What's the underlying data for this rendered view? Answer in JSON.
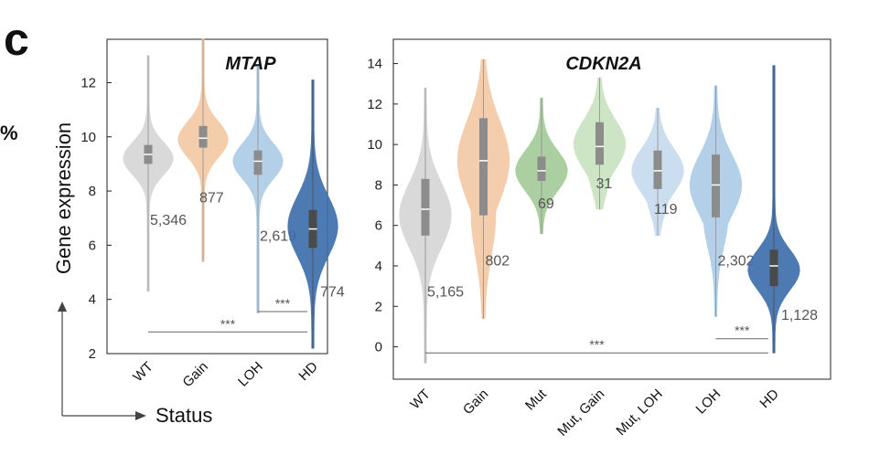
{
  "panel_label": "c",
  "margin_fragment": "%",
  "shared_axis": {
    "ylabel": "Gene expression",
    "xlabel": "Status"
  },
  "chart_data": [
    {
      "type": "violin",
      "title": "MTAP",
      "ylim": [
        2,
        13.6
      ],
      "yticks": [
        2,
        4,
        6,
        8,
        10,
        12
      ],
      "categories": [
        "WT",
        "Gain",
        "LOH",
        "HD"
      ],
      "colors": [
        "#d6d6d6",
        "#f2c9a6",
        "#aecde8",
        "#3f6fad"
      ],
      "series": [
        {
          "category": "WT",
          "n_label": "5,346",
          "min": 4.3,
          "q1": 9.0,
          "median": 9.35,
          "q3": 9.7,
          "max": 13.0,
          "peak": 9.2,
          "spread": 0.6
        },
        {
          "category": "Gain",
          "n_label": "877",
          "min": 5.4,
          "q1": 9.6,
          "median": 9.95,
          "q3": 10.4,
          "max": 13.6,
          "peak": 9.9,
          "spread": 0.65
        },
        {
          "category": "LOH",
          "n_label": "2,619",
          "min": 3.5,
          "q1": 8.6,
          "median": 9.1,
          "q3": 9.5,
          "max": 12.6,
          "peak": 9.1,
          "spread": 0.65
        },
        {
          "category": "HD",
          "n_label": "774",
          "min": 2.2,
          "q1": 5.9,
          "median": 6.6,
          "q3": 7.3,
          "max": 12.1,
          "peak": 6.7,
          "spread": 1.1
        }
      ],
      "significance": [
        {
          "label": "***",
          "from": "LOH",
          "to": "HD",
          "y": 3.55
        },
        {
          "label": "***",
          "from": "WT",
          "to": "HD",
          "y": 2.8
        }
      ]
    },
    {
      "type": "violin",
      "title": "CDKN2A",
      "ylim": [
        -1.6,
        15.2
      ],
      "yticks": [
        0,
        2,
        4,
        6,
        8,
        10,
        12,
        14
      ],
      "categories": [
        "WT",
        "Gain",
        "Mut",
        "Mut, Gain",
        "Mut, LOH",
        "LOH",
        "HD"
      ],
      "colors": [
        "#d6d6d6",
        "#f2c9a6",
        "#a5cc9a",
        "#c9e2c1",
        "#c7dcef",
        "#aecde8",
        "#3f6fad"
      ],
      "series": [
        {
          "category": "WT",
          "n_label": "5,165",
          "min": -0.8,
          "q1": 5.5,
          "median": 6.8,
          "q3": 8.3,
          "max": 12.8,
          "peak": 6.5,
          "spread": 1.6
        },
        {
          "category": "Gain",
          "n_label": "802",
          "min": 1.4,
          "q1": 6.5,
          "median": 9.2,
          "q3": 11.3,
          "max": 14.2,
          "peak": 9.2,
          "spread": 2.0
        },
        {
          "category": "Mut",
          "n_label": "69",
          "min": 5.6,
          "q1": 8.2,
          "median": 8.7,
          "q3": 9.4,
          "max": 12.3,
          "peak": 8.7,
          "spread": 1.0
        },
        {
          "category": "Mut, Gain",
          "n_label": "31",
          "min": 6.8,
          "q1": 9.0,
          "median": 9.9,
          "q3": 11.1,
          "max": 13.3,
          "peak": 10.0,
          "spread": 1.2
        },
        {
          "category": "Mut, LOH",
          "n_label": "119",
          "min": 5.5,
          "q1": 7.8,
          "median": 8.7,
          "q3": 9.7,
          "max": 11.8,
          "peak": 8.7,
          "spread": 1.1
        },
        {
          "category": "LOH",
          "n_label": "2,302",
          "min": 1.5,
          "q1": 6.4,
          "median": 8.0,
          "q3": 9.5,
          "max": 12.9,
          "peak": 8.0,
          "spread": 1.5
        },
        {
          "category": "HD",
          "n_label": "1,128",
          "min": -0.3,
          "q1": 3.0,
          "median": 4.0,
          "q3": 4.8,
          "max": 13.9,
          "peak": 3.8,
          "spread": 1.0
        }
      ],
      "significance": [
        {
          "label": "***",
          "from": "LOH",
          "to": "HD",
          "y": 0.4
        },
        {
          "label": "***",
          "from": "WT",
          "to": "HD",
          "y": -0.3
        }
      ]
    }
  ]
}
